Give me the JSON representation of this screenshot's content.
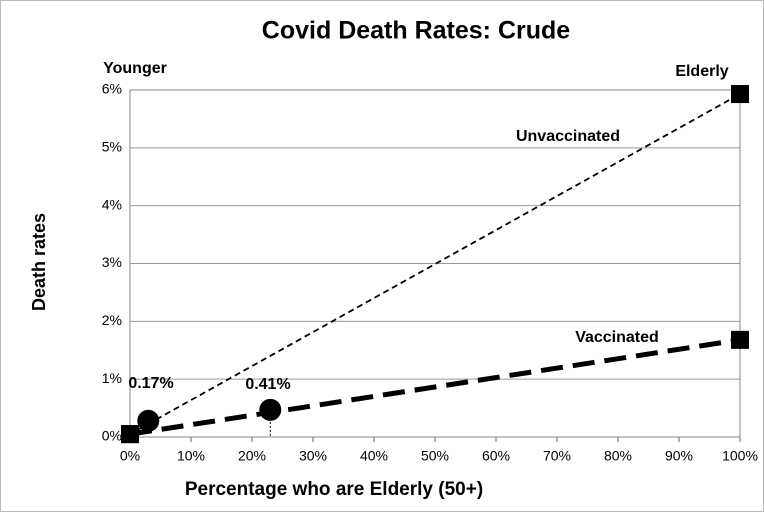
{
  "chart_data": {
    "type": "line",
    "title": "Covid Death Rates: Crude",
    "x_label": "Percentage who are Elderly (50+)",
    "y_label": "Death rates",
    "xlim": [
      0,
      100
    ],
    "ylim": [
      0,
      6
    ],
    "xticks": [
      {
        "value": 0,
        "label": "0%"
      },
      {
        "value": 10,
        "label": "10%"
      },
      {
        "value": 20,
        "label": "20%"
      },
      {
        "value": 30,
        "label": "30%"
      },
      {
        "value": 40,
        "label": "40%"
      },
      {
        "value": 50,
        "label": "50%"
      },
      {
        "value": 60,
        "label": "60%"
      },
      {
        "value": 70,
        "label": "70%"
      },
      {
        "value": 80,
        "label": "80%"
      },
      {
        "value": 90,
        "label": "90%"
      },
      {
        "value": 100,
        "label": "100%"
      }
    ],
    "yticks": [
      {
        "value": 0,
        "label": "0%"
      },
      {
        "value": 1,
        "label": "1%"
      },
      {
        "value": 2,
        "label": "2%"
      },
      {
        "value": 3,
        "label": "3%"
      },
      {
        "value": 4,
        "label": "4%"
      },
      {
        "value": 5,
        "label": "5%"
      },
      {
        "value": 6,
        "label": "6%"
      }
    ],
    "grid": true,
    "series": [
      {
        "name": "Unvaccinated",
        "color": "#000000",
        "x": [
          0,
          100
        ],
        "values": [
          0.05,
          5.93
        ]
      },
      {
        "name": "Vaccinated",
        "color": "#000000",
        "x": [
          0,
          100
        ],
        "values": [
          0.05,
          1.68
        ]
      }
    ],
    "points": {
      "x": [
        3,
        23
      ],
      "values": [
        0.28,
        0.47
      ]
    },
    "annotations": [
      "Younger",
      "Elderly",
      "0.17%",
      "0.41%"
    ]
  }
}
